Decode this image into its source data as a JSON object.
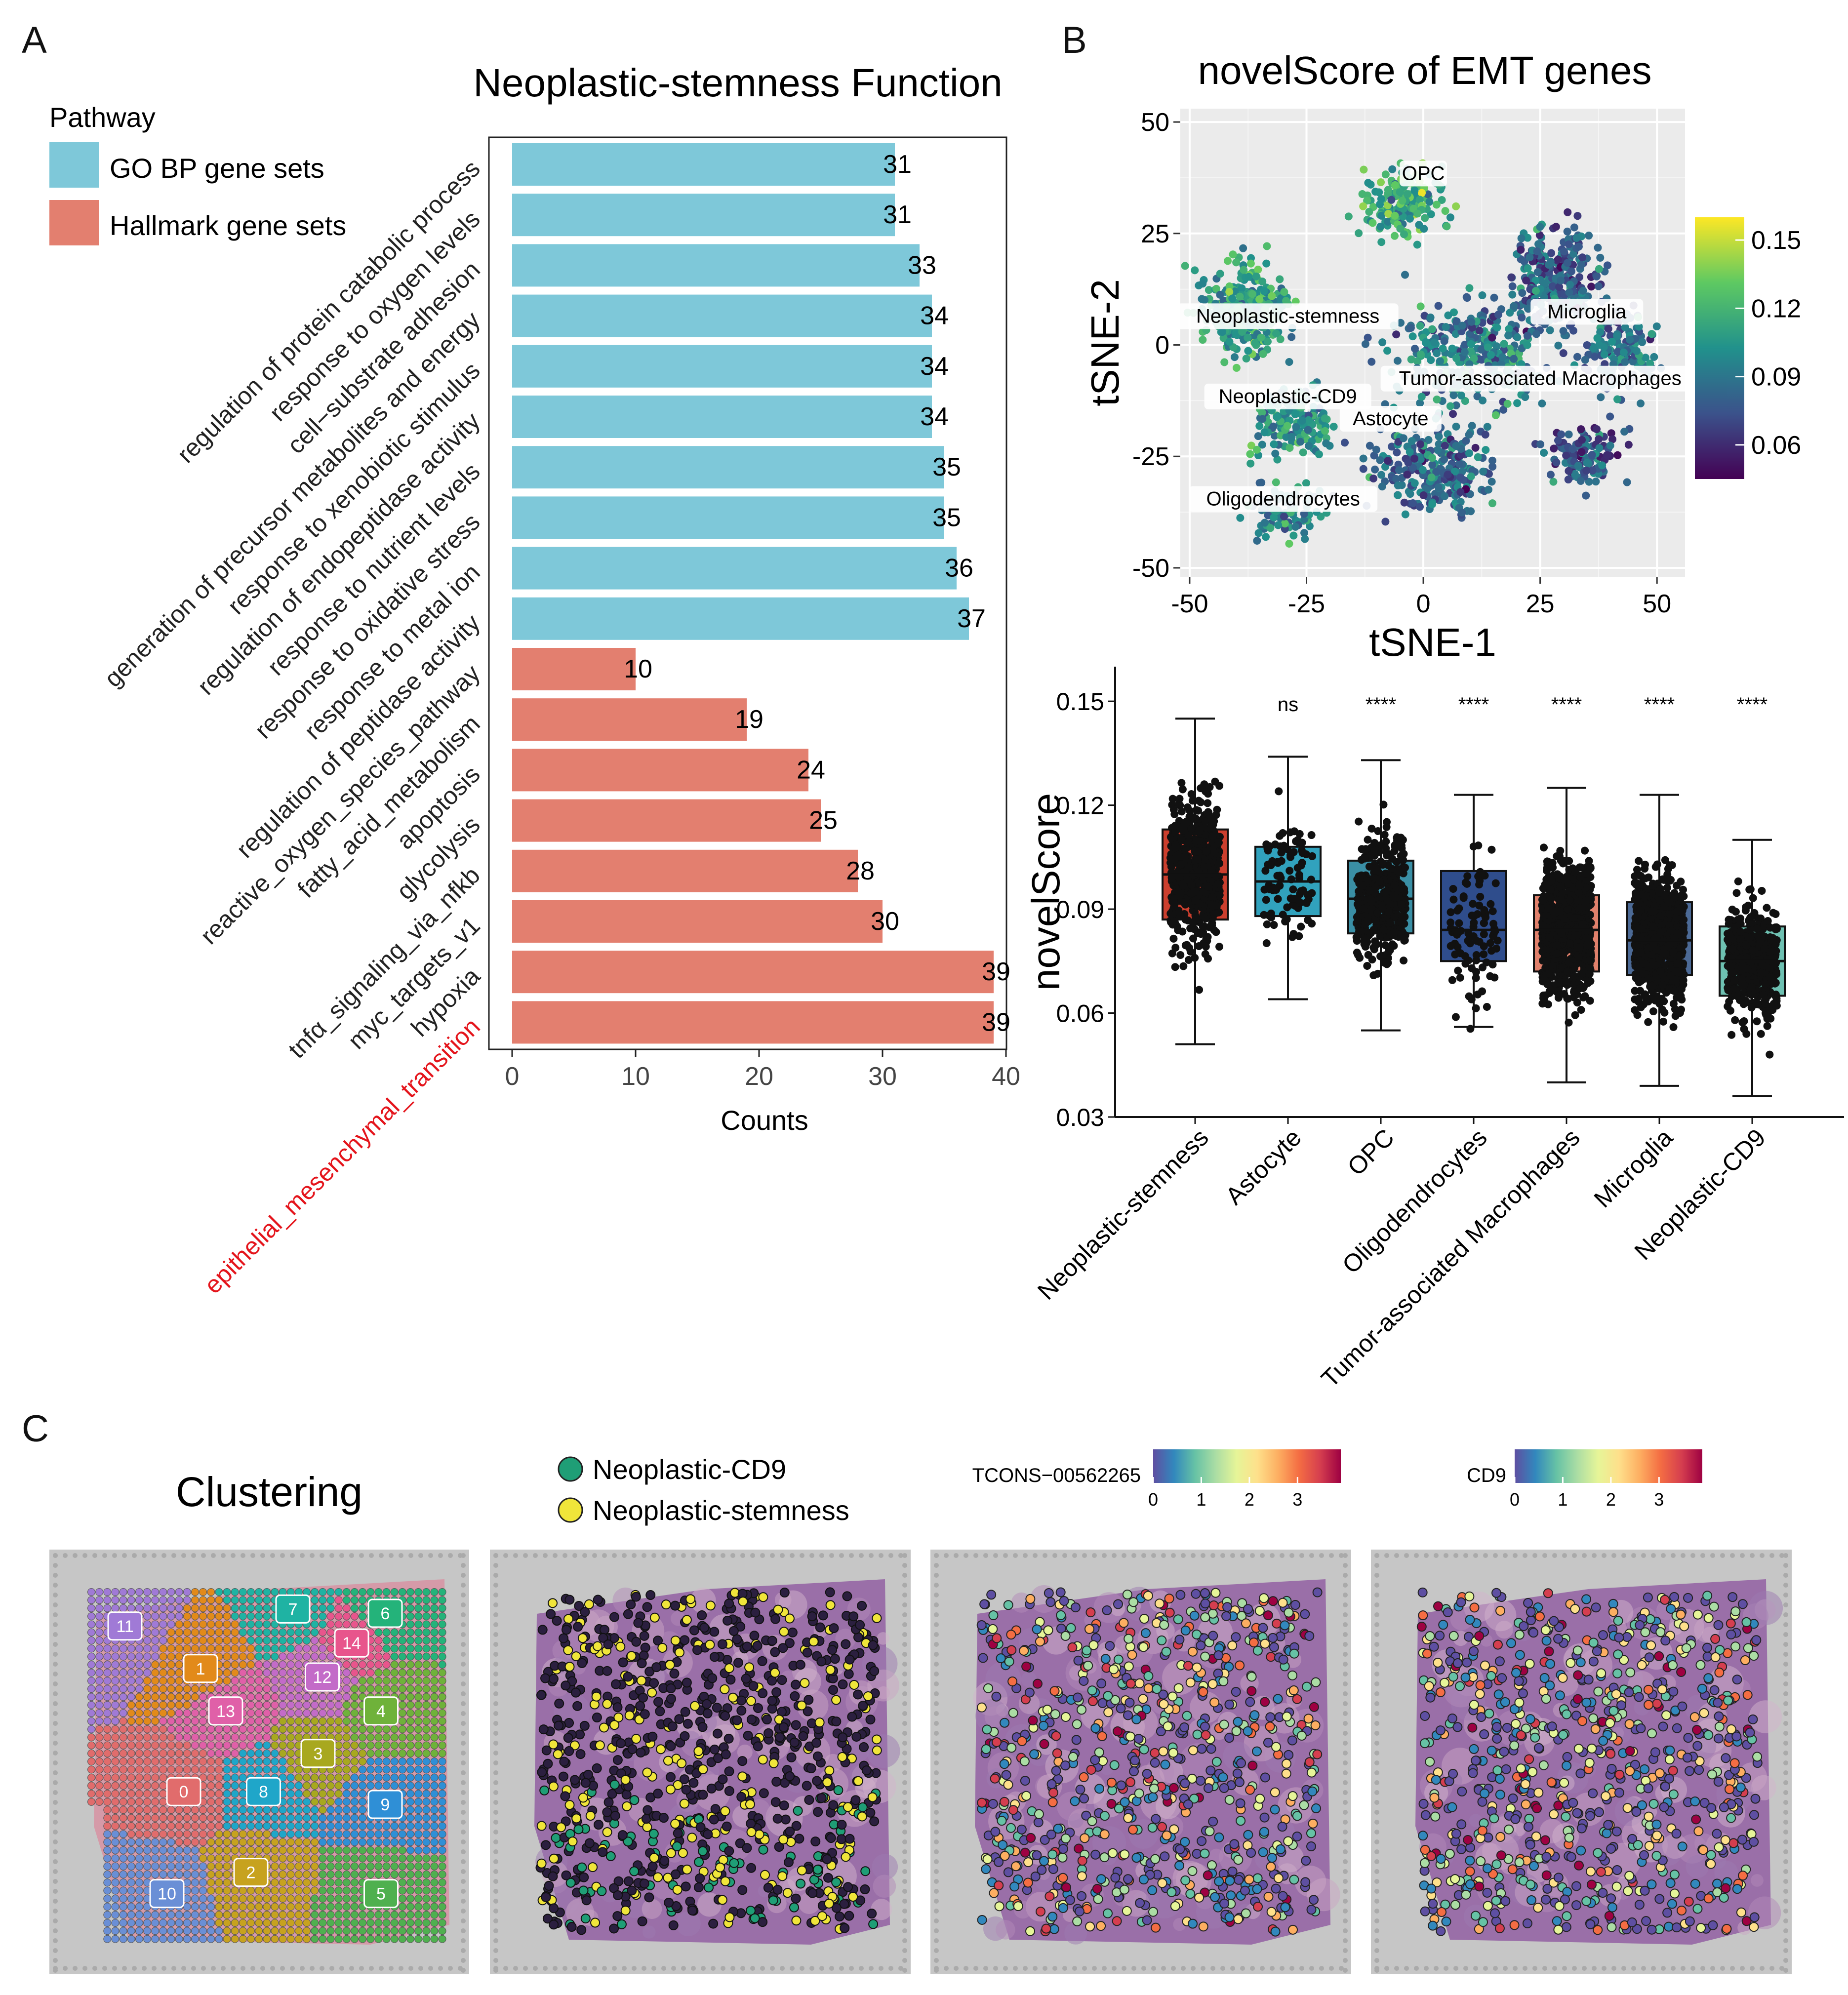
{
  "colors": {
    "go_bp": "#7ec8d9",
    "hallmark": "#e37f6f",
    "highlight_red": "#e4141b",
    "box_stemness": "#cc3f2e",
    "box_astocyte": "#31a2bd",
    "box_opc": "#3a8fa5",
    "box_oligo": "#2f4d8c",
    "box_tam": "#e1816c",
    "box_microglia": "#4c6a96",
    "box_cd9": "#6ec1b2",
    "cd9_spot": "#1f9e76",
    "stemness_spot": "#f0e53a"
  },
  "panel_labels": {
    "a": "A",
    "b": "B",
    "c": "C"
  },
  "chart_data": [
    {
      "type": "bar",
      "orientation": "horizontal",
      "title": "Neoplastic-stemness Function",
      "xlabel": "Counts",
      "ylabel": "",
      "xlim": [
        0,
        40
      ],
      "xticks": [
        0,
        10,
        20,
        30,
        40
      ],
      "legend": {
        "title": "Pathway",
        "items": [
          "GO BP gene sets",
          "Hallmark gene sets"
        ],
        "position": "top-left"
      },
      "categories": [
        "regulation of protein catabolic process",
        "response to oxygen levels",
        "cell−substrate adhesion",
        "generation of precursor metabolites and energy",
        "response to xenobiotic stimulus",
        "regulation of endopeptidase activity",
        "response to nutrient levels",
        "response to oxidative stress",
        "response to metal ion",
        "regulation of peptidase activity",
        "reactive_oxygen_species_pathway",
        "fatty_acid_metabolism",
        "apoptosis",
        "glycolysis",
        "tnfα_signaling_via_nfkb",
        "myc_targets_v1",
        "hypoxia",
        "epithelial_mesenchymal_transition"
      ],
      "values": [
        31,
        31,
        33,
        34,
        34,
        34,
        35,
        35,
        36,
        37,
        10,
        19,
        24,
        25,
        28,
        30,
        39,
        39
      ],
      "groups": [
        "GO BP gene sets",
        "GO BP gene sets",
        "GO BP gene sets",
        "GO BP gene sets",
        "GO BP gene sets",
        "GO BP gene sets",
        "GO BP gene sets",
        "GO BP gene sets",
        "GO BP gene sets",
        "GO BP gene sets",
        "Hallmark gene sets",
        "Hallmark gene sets",
        "Hallmark gene sets",
        "Hallmark gene sets",
        "Hallmark gene sets",
        "Hallmark gene sets",
        "Hallmark gene sets",
        "Hallmark gene sets"
      ],
      "highlighted_category": "epithelial_mesenchymal_transition"
    },
    {
      "type": "scatter",
      "title": "novelScore of EMT genes",
      "xlabel": "tSNE-1",
      "ylabel": "tSNE-2",
      "xlim": [
        -52,
        56
      ],
      "ylim": [
        -52,
        53
      ],
      "xticks": [
        -50,
        -25,
        0,
        25,
        50
      ],
      "yticks": [
        50,
        25,
        0,
        -25,
        -50
      ],
      "grid": true,
      "colorbar": {
        "ticks": [
          "0.15",
          "0.12",
          "0.09",
          "0.06"
        ],
        "range": [
          0.045,
          0.16
        ],
        "colormap": "viridis",
        "position": "right"
      },
      "cluster_labels": [
        {
          "name": "OPC",
          "x": 0,
          "y": 38
        },
        {
          "name": "Neoplastic-stemness",
          "x": -29,
          "y": 6
        },
        {
          "name": "Microglia",
          "x": 35,
          "y": 7
        },
        {
          "name": "Tumor-associated Macrophages",
          "x": 25,
          "y": -8
        },
        {
          "name": "Neoplastic-CD9",
          "x": -29,
          "y": -12
        },
        {
          "name": "Astocyte",
          "x": -7,
          "y": -17
        },
        {
          "name": "Oligodendrocytes",
          "x": -30,
          "y": -35
        }
      ]
    },
    {
      "type": "box",
      "title": "",
      "xlabel": "",
      "ylabel": "novelScore",
      "ylim": [
        0.03,
        0.16
      ],
      "yticks": [
        "0.15",
        "0.12",
        "0.09",
        "0.06",
        "0.03"
      ],
      "categories": [
        "Neoplastic-stemness",
        "Astocyte",
        "OPC",
        "Oligodendrocytes",
        "Tumor-associated Macrophages",
        "Microglia",
        "Neoplastic-CD9"
      ],
      "significance": [
        "",
        "ns",
        "****",
        "****",
        "****",
        "****",
        "****"
      ],
      "boxes": [
        {
          "q1": 0.087,
          "median": 0.1,
          "q3": 0.113,
          "whisker_low": 0.051,
          "whisker_high": 0.145
        },
        {
          "q1": 0.088,
          "median": 0.098,
          "q3": 0.108,
          "whisker_low": 0.064,
          "whisker_high": 0.134
        },
        {
          "q1": 0.083,
          "median": 0.093,
          "q3": 0.104,
          "whisker_low": 0.055,
          "whisker_high": 0.133
        },
        {
          "q1": 0.075,
          "median": 0.084,
          "q3": 0.101,
          "whisker_low": 0.056,
          "whisker_high": 0.123
        },
        {
          "q1": 0.072,
          "median": 0.084,
          "q3": 0.094,
          "whisker_low": 0.04,
          "whisker_high": 0.125
        },
        {
          "q1": 0.071,
          "median": 0.081,
          "q3": 0.092,
          "whisker_low": 0.039,
          "whisker_high": 0.123
        },
        {
          "q1": 0.065,
          "median": 0.075,
          "q3": 0.085,
          "whisker_low": 0.036,
          "whisker_high": 0.11
        }
      ]
    },
    {
      "type": "spatial",
      "title": "Clustering",
      "cluster_ids": [
        "0",
        "1",
        "2",
        "3",
        "4",
        "5",
        "6",
        "7",
        "8",
        "9",
        "10",
        "11",
        "12",
        "13",
        "14"
      ]
    },
    {
      "type": "spatial",
      "legend": {
        "items": [
          "Neoplastic-CD9",
          "Neoplastic-stemness"
        ]
      }
    },
    {
      "type": "spatial",
      "colorbar": {
        "title": "TCONS−00562265",
        "ticks": [
          "0",
          "1",
          "2",
          "3"
        ],
        "range": [
          0,
          3.9
        ]
      }
    },
    {
      "type": "spatial",
      "colorbar": {
        "title": "CD9",
        "ticks": [
          "0",
          "1",
          "2",
          "3"
        ],
        "range": [
          0,
          3.9
        ]
      }
    }
  ]
}
